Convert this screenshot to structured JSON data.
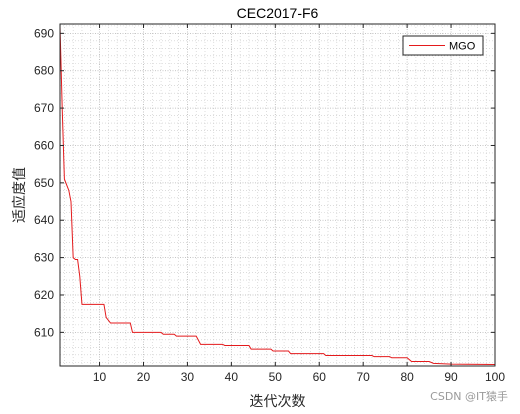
{
  "chart_data": {
    "type": "line",
    "title": "CEC2017-F6",
    "xlabel": "迭代次数",
    "ylabel": "适应度值",
    "xlim": [
      1,
      100
    ],
    "ylim": [
      601,
      692.5
    ],
    "xticks": [
      10,
      20,
      30,
      40,
      50,
      60,
      70,
      80,
      90,
      100
    ],
    "yticks": [
      610,
      620,
      630,
      640,
      650,
      660,
      670,
      680,
      690
    ],
    "grid": true,
    "minor_grid": true,
    "legend_position": "top-right",
    "series": [
      {
        "name": "MGO",
        "color": "#e41a1c",
        "points": [
          [
            1,
            692
          ],
          [
            1.5,
            670
          ],
          [
            2,
            651
          ],
          [
            3,
            648
          ],
          [
            3.5,
            645
          ],
          [
            4,
            630
          ],
          [
            4.5,
            629.5
          ],
          [
            5,
            629.5
          ],
          [
            5.5,
            625
          ],
          [
            6,
            617.5
          ],
          [
            11,
            617.5
          ],
          [
            11.5,
            614
          ],
          [
            12.5,
            612.5
          ],
          [
            17,
            612.5
          ],
          [
            17.5,
            610
          ],
          [
            24,
            610
          ],
          [
            24.5,
            609.5
          ],
          [
            27,
            609.5
          ],
          [
            27.5,
            609
          ],
          [
            32,
            609
          ],
          [
            33,
            606.8
          ],
          [
            38,
            606.8
          ],
          [
            38.5,
            606.5
          ],
          [
            44,
            606.5
          ],
          [
            44.5,
            605.5
          ],
          [
            49,
            605.5
          ],
          [
            49.5,
            605
          ],
          [
            53,
            605
          ],
          [
            53.5,
            604.3
          ],
          [
            61,
            604.3
          ],
          [
            61.5,
            603.8
          ],
          [
            72,
            603.8
          ],
          [
            72.5,
            603.5
          ],
          [
            76,
            603.5
          ],
          [
            76.5,
            603.2
          ],
          [
            80,
            603.2
          ],
          [
            81,
            602.2
          ],
          [
            85,
            602.2
          ],
          [
            86,
            601.7
          ],
          [
            90,
            601.5
          ],
          [
            100,
            601.4
          ]
        ]
      }
    ]
  },
  "watermark": "CSDN @IT猿手"
}
